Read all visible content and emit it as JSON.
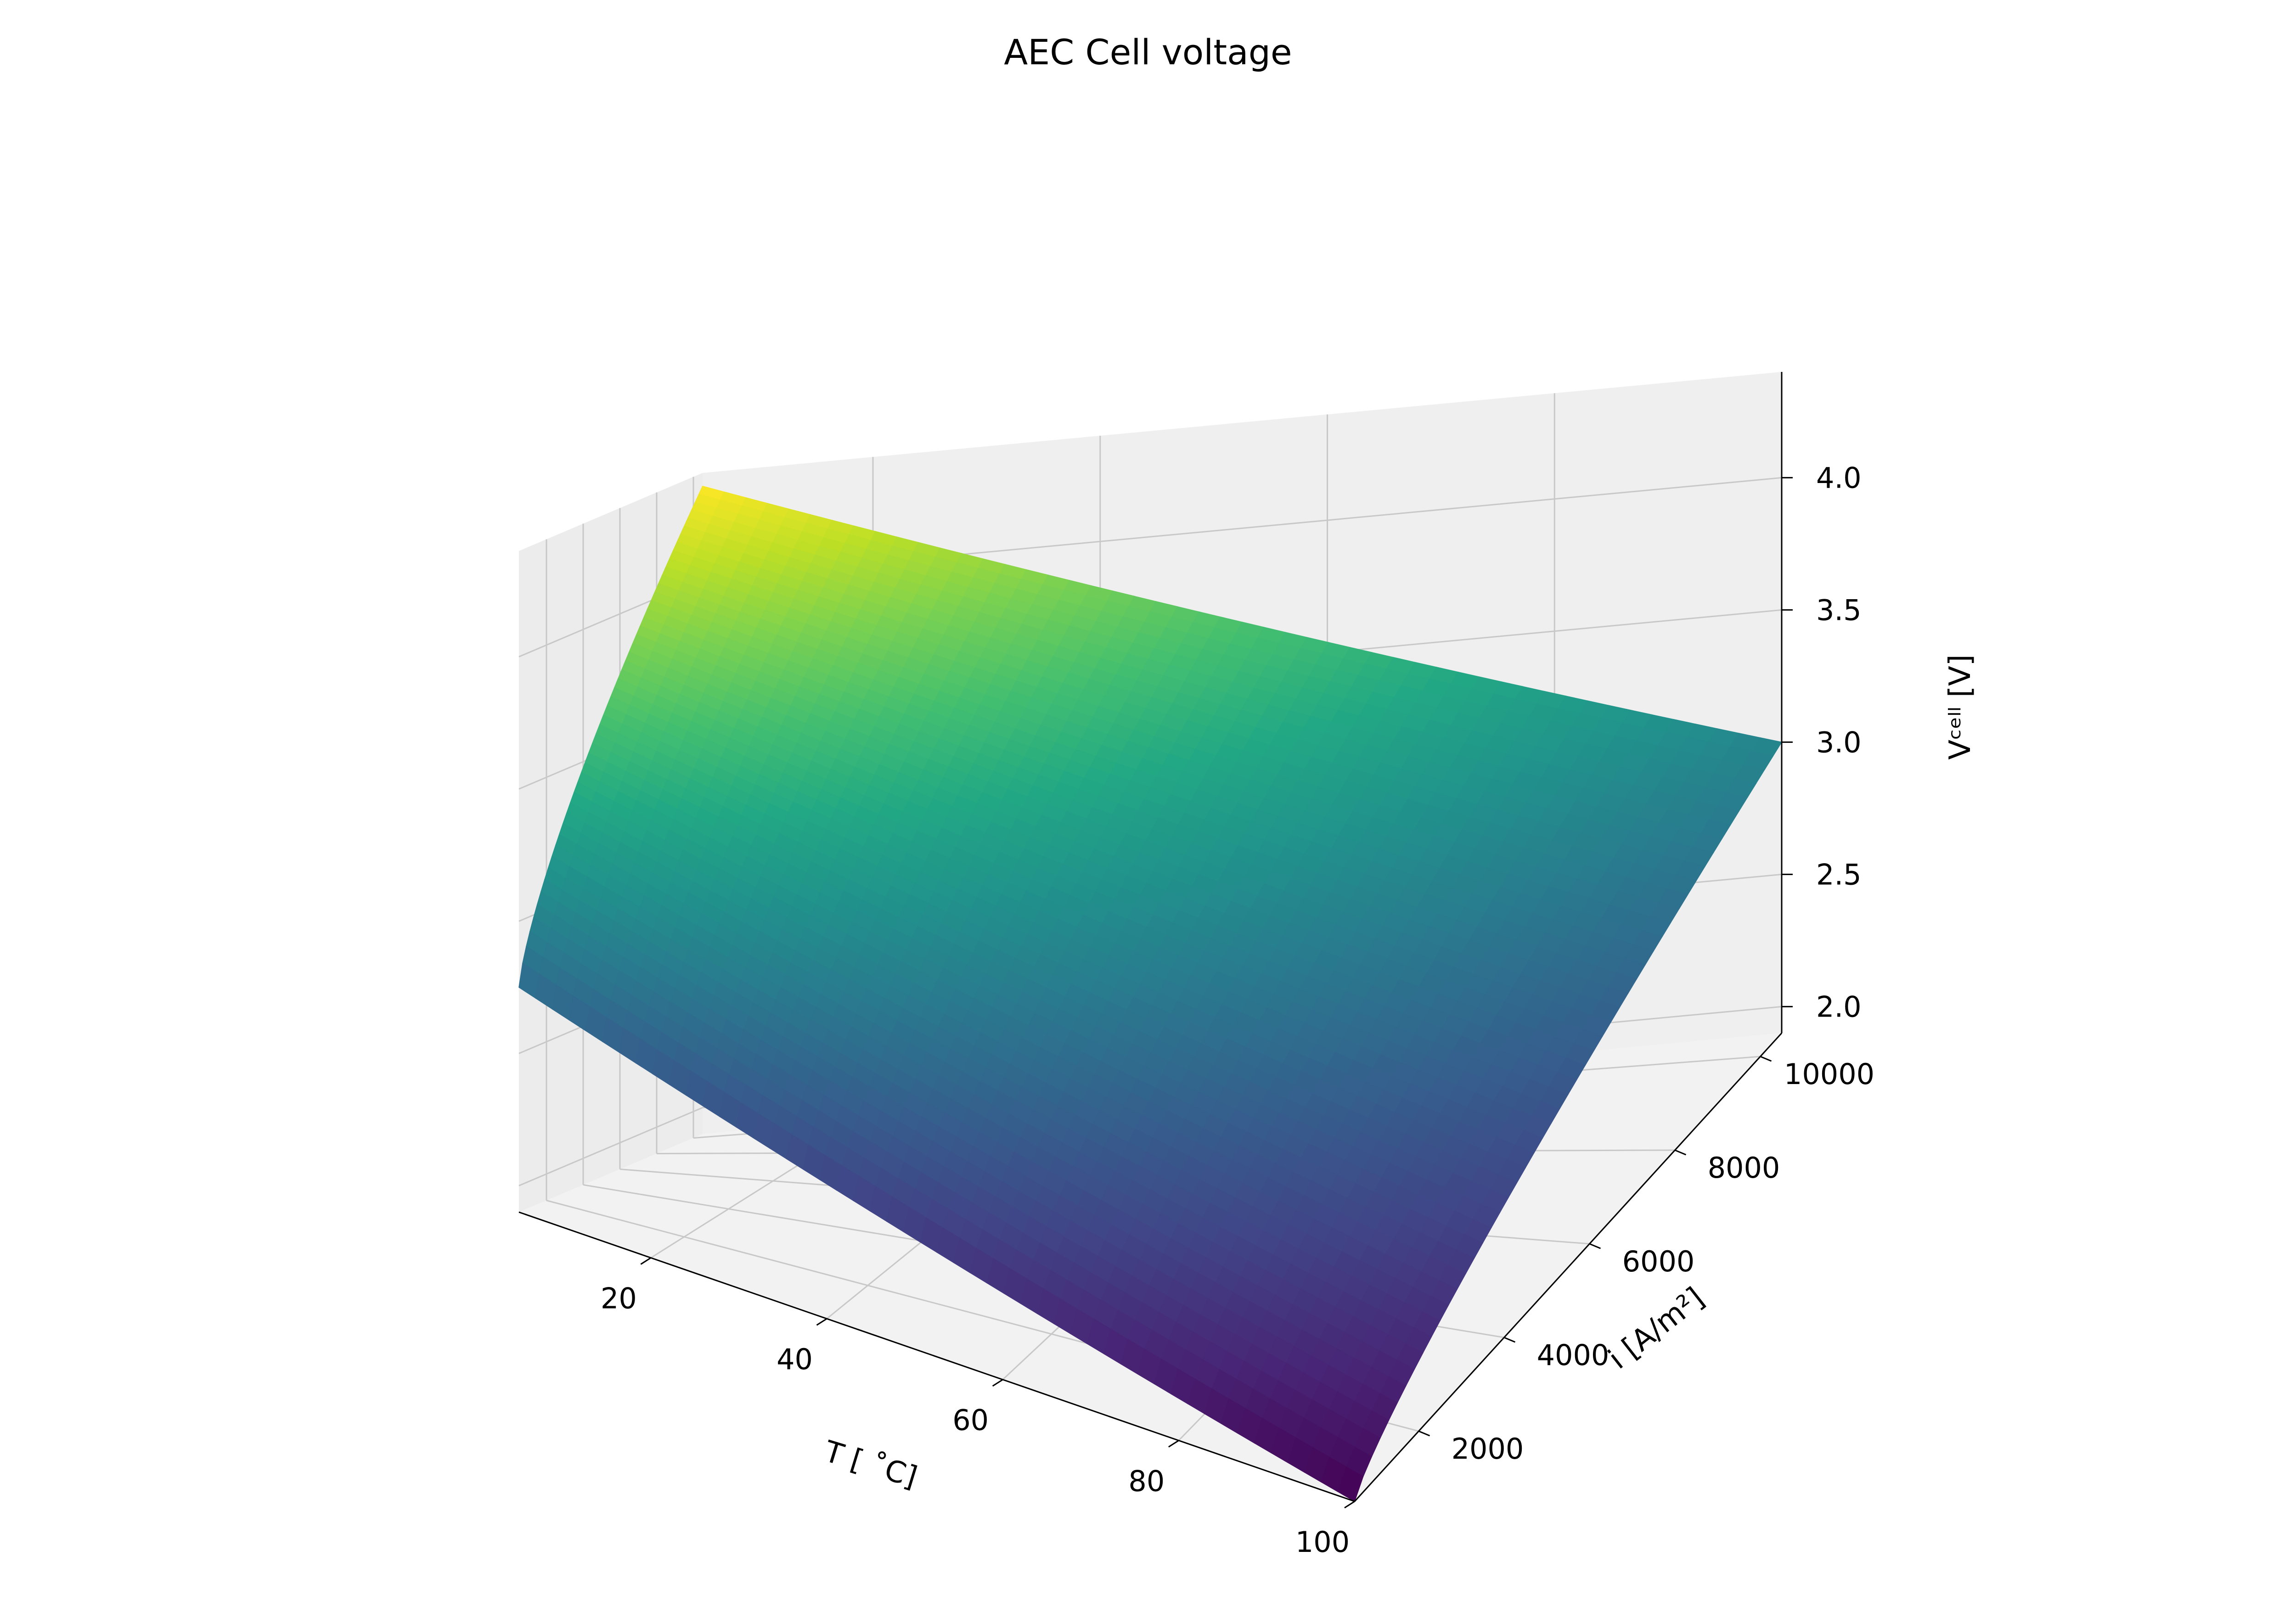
{
  "chart_data": {
    "type": "surface3d",
    "title": "AEC Cell voltage",
    "colormap": "viridis",
    "xlabel": "T [$^\\circ$C]",
    "xlabel_text": "T [ ˚C]",
    "ylabel_text": "i [A/m²]",
    "zlabel_text": "Vᶜᵉˡˡ  [V]",
    "x_ticks": [
      20,
      40,
      60,
      80,
      100
    ],
    "x_tick_labels": [
      "20",
      "40",
      "60",
      "80",
      "100"
    ],
    "y_ticks": [
      2000,
      4000,
      6000,
      8000,
      10000
    ],
    "y_tick_labels": [
      "2000",
      "4000",
      "6000",
      "8000",
      "10000"
    ],
    "z_ticks": [
      2.0,
      2.5,
      3.0,
      3.5,
      4.0
    ],
    "z_tick_labels": [
      "2.0",
      "2.5",
      "3.0",
      "3.5",
      "4.0"
    ],
    "xlim": [
      5,
      100
    ],
    "ylim": [
      500,
      10500
    ],
    "zlim": [
      1.9,
      4.4
    ],
    "surface_corners": [
      {
        "T": 5,
        "i": 500,
        "V": 2.75
      },
      {
        "T": 5,
        "i": 10500,
        "V": 4.35
      },
      {
        "T": 100,
        "i": 10500,
        "V": 3.0
      },
      {
        "T": 100,
        "i": 500,
        "V": 1.9
      }
    ],
    "grid": true
  }
}
